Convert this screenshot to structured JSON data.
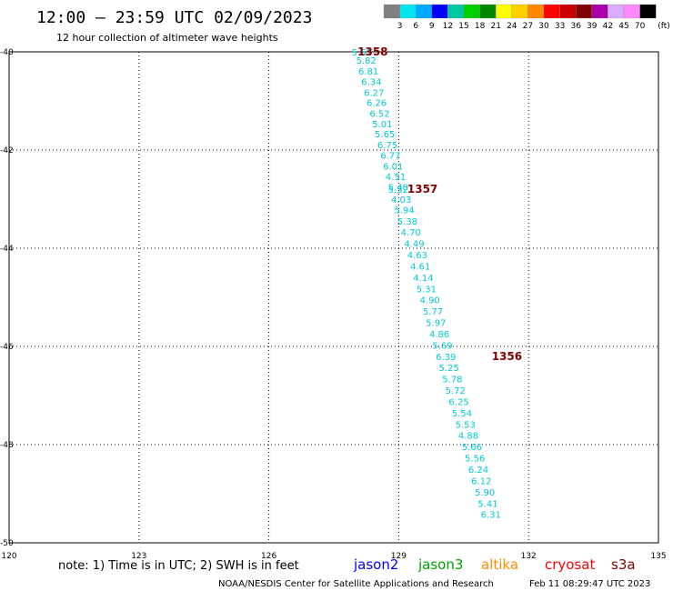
{
  "title": "12:00 – 23:59 UTC 02/09/2023",
  "subtitle": "12 hour collection of altimeter wave heights",
  "colorbar": {
    "labels": [
      "3",
      "6",
      "9",
      "12",
      "15",
      "18",
      "21",
      "24",
      "27",
      "30",
      "33",
      "36",
      "39",
      "42",
      "45",
      "70"
    ],
    "unit": "(ft)",
    "colors": [
      "#808080",
      "#00e5ee",
      "#00aaff",
      "#0000ff",
      "#00c8a0",
      "#00d000",
      "#008800",
      "#ffff00",
      "#ffd000",
      "#ff8800",
      "#ff0000",
      "#cc0000",
      "#800000",
      "#aa00aa",
      "#dcaaff",
      "#ff88ff",
      "#000000"
    ]
  },
  "chart_data": {
    "type": "scatter",
    "xlim": [
      120,
      135
    ],
    "ylim": [
      -50,
      -40
    ],
    "x_ticks": [
      "120",
      "123",
      "126",
      "129",
      "132",
      "135"
    ],
    "y_ticks": [
      "-40",
      "-42",
      "-44",
      "-46",
      "-48",
      "-50"
    ],
    "grid": true,
    "series": [
      {
        "color": "#00c8d4",
        "points": [
          {
            "x": 128.15,
            "y": -40.0,
            "label": "5.52"
          },
          {
            "x": 128.25,
            "y": -40.17,
            "label": "5.82"
          },
          {
            "x": 128.3,
            "y": -40.39,
            "label": "6.81"
          },
          {
            "x": 128.37,
            "y": -40.6,
            "label": "6.34"
          },
          {
            "x": 128.43,
            "y": -40.82,
            "label": "6.27"
          },
          {
            "x": 128.49,
            "y": -41.03,
            "label": "6.26"
          },
          {
            "x": 128.56,
            "y": -41.25,
            "label": "6.52"
          },
          {
            "x": 128.62,
            "y": -41.46,
            "label": "5.01"
          },
          {
            "x": 128.68,
            "y": -41.67,
            "label": "5.65"
          },
          {
            "x": 128.74,
            "y": -41.89,
            "label": "6.75"
          },
          {
            "x": 128.81,
            "y": -42.1,
            "label": "6.77"
          },
          {
            "x": 128.87,
            "y": -42.32,
            "label": "6.01"
          },
          {
            "x": 128.93,
            "y": -42.54,
            "label": "4.51"
          },
          {
            "x": 128.99,
            "y": -42.75,
            "label": "5.40"
          },
          {
            "x": 128.99,
            "y": -42.8,
            "label": "5.32"
          },
          {
            "x": 129.06,
            "y": -43.0,
            "label": "4.03"
          },
          {
            "x": 129.13,
            "y": -43.21,
            "label": "5.94"
          },
          {
            "x": 129.2,
            "y": -43.44,
            "label": "5.38"
          },
          {
            "x": 129.28,
            "y": -43.67,
            "label": "4.70"
          },
          {
            "x": 129.36,
            "y": -43.9,
            "label": "4.49"
          },
          {
            "x": 129.43,
            "y": -44.13,
            "label": "4.63"
          },
          {
            "x": 129.5,
            "y": -44.36,
            "label": "4.61"
          },
          {
            "x": 129.57,
            "y": -44.59,
            "label": "4.14"
          },
          {
            "x": 129.64,
            "y": -44.82,
            "label": "5.31"
          },
          {
            "x": 129.72,
            "y": -45.05,
            "label": "4.90"
          },
          {
            "x": 129.79,
            "y": -45.28,
            "label": "5.77"
          },
          {
            "x": 129.86,
            "y": -45.51,
            "label": "5.97"
          },
          {
            "x": 129.94,
            "y": -45.74,
            "label": "4.86"
          },
          {
            "x": 130.01,
            "y": -45.97,
            "label": "5.69"
          },
          {
            "x": 130.09,
            "y": -46.2,
            "label": "6.39"
          },
          {
            "x": 130.16,
            "y": -46.43,
            "label": "5.25"
          },
          {
            "x": 130.24,
            "y": -46.66,
            "label": "5.78"
          },
          {
            "x": 130.31,
            "y": -46.89,
            "label": "5.72"
          },
          {
            "x": 130.39,
            "y": -47.12,
            "label": "6.25"
          },
          {
            "x": 130.46,
            "y": -47.35,
            "label": "5.54"
          },
          {
            "x": 130.54,
            "y": -47.58,
            "label": "5.53"
          },
          {
            "x": 130.61,
            "y": -47.81,
            "label": "4.88"
          },
          {
            "x": 130.69,
            "y": -48.04,
            "label": "5.66"
          },
          {
            "x": 130.76,
            "y": -48.27,
            "label": "5.56"
          },
          {
            "x": 130.84,
            "y": -48.5,
            "label": "6.24"
          },
          {
            "x": 130.91,
            "y": -48.73,
            "label": "6.12"
          },
          {
            "x": 130.99,
            "y": -48.96,
            "label": "5.90"
          },
          {
            "x": 131.06,
            "y": -49.19,
            "label": "5.41"
          },
          {
            "x": 131.13,
            "y": -49.42,
            "label": "6.31"
          }
        ]
      }
    ],
    "annotations": [
      {
        "text": "1358",
        "x": 128.4,
        "y": -40.0
      },
      {
        "text": "1357",
        "x": 129.55,
        "y": -42.8
      },
      {
        "text": "1356",
        "x": 131.5,
        "y": -46.2
      }
    ]
  },
  "legend": [
    {
      "text": "jason2",
      "color": "#0000ff"
    },
    {
      "text": "jason3",
      "color": "#00a000"
    },
    {
      "text": "altika",
      "color": "#ff8c00"
    },
    {
      "text": "cryosat",
      "color": "#ff0000"
    },
    {
      "text": "s3a",
      "color": "#800000"
    }
  ],
  "note": "note:  1) Time is in UTC;  2) SWH is in feet",
  "footer": {
    "credit": "NOAA/NESDIS Center for Satellite Applications and Research",
    "timestamp": "Feb 11 08:29:47 UTC 2023"
  }
}
